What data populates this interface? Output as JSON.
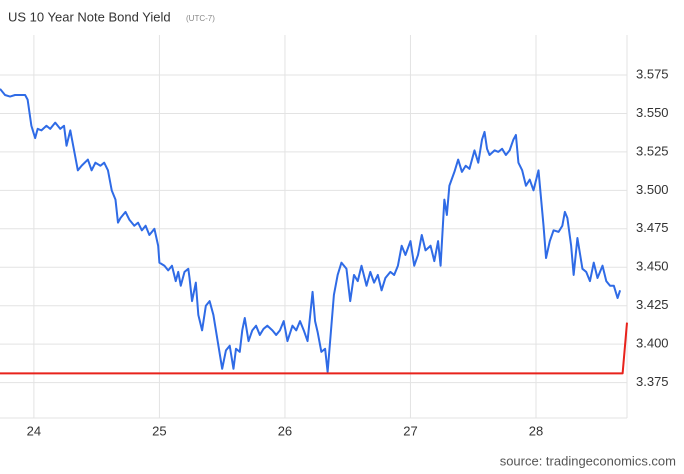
{
  "chart_data": {
    "type": "line",
    "title": "US 10 Year Note Bond Yield",
    "subtitle": "(UTC-7)",
    "source": "source: tradingeconomics.com",
    "xlim": [
      23.73,
      28.725
    ],
    "ylim": [
      3.352,
      3.601
    ],
    "xticks": [
      24,
      25,
      26,
      27,
      28
    ],
    "yticks": [
      3.375,
      {
        "value": 3.4,
        "label": "3.400"
      },
      3.425,
      {
        "value": 3.45,
        "label": "3.450"
      },
      3.475,
      {
        "value": 3.5,
        "label": "3.500"
      },
      3.525,
      {
        "value": 3.55,
        "label": "3.550"
      },
      3.575
    ],
    "grid": true,
    "series": [
      {
        "color": "#2f6be6",
        "x": [
          23.73,
          23.77,
          23.81,
          23.85,
          23.89,
          23.93,
          23.95,
          23.98,
          24.01,
          24.03,
          24.06,
          24.1,
          24.13,
          24.17,
          24.21,
          24.24,
          24.26,
          24.29,
          24.32,
          24.35,
          24.38,
          24.43,
          24.46,
          24.49,
          24.53,
          24.56,
          24.59,
          24.62,
          24.65,
          24.67,
          24.69,
          24.73,
          24.76,
          24.8,
          24.83,
          24.86,
          24.89,
          24.92,
          24.96,
          24.99,
          25.0,
          25.04,
          25.07,
          25.1,
          25.13,
          25.15,
          25.17,
          25.2,
          25.23,
          25.24,
          25.26,
          25.29,
          25.31,
          25.34,
          25.37,
          25.4,
          25.43,
          25.47,
          25.5,
          25.53,
          25.56,
          25.59,
          25.61,
          25.64,
          25.66,
          25.68,
          25.71,
          25.74,
          25.77,
          25.8,
          25.83,
          25.86,
          25.9,
          25.93,
          25.96,
          25.99,
          26.02,
          26.06,
          26.09,
          26.12,
          26.15,
          26.18,
          26.22,
          26.24,
          26.26,
          26.29,
          26.32,
          26.34,
          26.37,
          26.39,
          26.42,
          26.45,
          26.49,
          26.52,
          26.55,
          26.58,
          26.61,
          26.65,
          26.68,
          26.71,
          26.74,
          26.77,
          26.8,
          26.84,
          26.87,
          26.9,
          26.93,
          26.96,
          27.0,
          27.03,
          27.06,
          27.09,
          27.12,
          27.16,
          27.19,
          27.22,
          27.24,
          27.27,
          27.29,
          27.31,
          27.35,
          27.38,
          27.41,
          27.44,
          27.47,
          27.51,
          27.54,
          27.57,
          27.59,
          27.61,
          27.63,
          27.67,
          27.7,
          27.73,
          27.76,
          27.79,
          27.82,
          27.84,
          27.86,
          27.89,
          27.92,
          27.95,
          27.98,
          28.02,
          28.05,
          28.06,
          28.08,
          28.11,
          28.14,
          28.18,
          28.21,
          28.23,
          28.25,
          28.28,
          28.3,
          28.33,
          28.37,
          28.4,
          28.43,
          28.46,
          28.49,
          28.53,
          28.56,
          28.59,
          28.62,
          28.65,
          28.67
        ],
        "values": [
          3.566,
          3.562,
          3.561,
          3.562,
          3.562,
          3.562,
          3.559,
          3.542,
          3.534,
          3.54,
          3.539,
          3.542,
          3.54,
          3.544,
          3.54,
          3.542,
          3.529,
          3.539,
          3.526,
          3.513,
          3.516,
          3.52,
          3.513,
          3.518,
          3.516,
          3.518,
          3.513,
          3.5,
          3.494,
          3.479,
          3.482,
          3.486,
          3.481,
          3.477,
          3.479,
          3.474,
          3.477,
          3.471,
          3.475,
          3.464,
          3.453,
          3.451,
          3.448,
          3.451,
          3.441,
          3.447,
          3.438,
          3.447,
          3.449,
          3.443,
          3.428,
          3.44,
          3.419,
          3.409,
          3.425,
          3.428,
          3.419,
          3.399,
          3.384,
          3.396,
          3.399,
          3.384,
          3.397,
          3.395,
          3.409,
          3.417,
          3.402,
          3.409,
          3.412,
          3.406,
          3.41,
          3.412,
          3.409,
          3.406,
          3.409,
          3.415,
          3.402,
          3.412,
          3.409,
          3.415,
          3.409,
          3.402,
          3.434,
          3.415,
          3.408,
          3.395,
          3.397,
          3.382,
          3.412,
          3.432,
          3.445,
          3.453,
          3.449,
          3.428,
          3.445,
          3.441,
          3.451,
          3.438,
          3.447,
          3.44,
          3.445,
          3.435,
          3.443,
          3.447,
          3.445,
          3.451,
          3.464,
          3.458,
          3.467,
          3.451,
          3.458,
          3.471,
          3.461,
          3.464,
          3.454,
          3.467,
          3.451,
          3.494,
          3.484,
          3.503,
          3.512,
          3.52,
          3.512,
          3.516,
          3.514,
          3.526,
          3.518,
          3.533,
          3.538,
          3.527,
          3.523,
          3.526,
          3.525,
          3.527,
          3.523,
          3.526,
          3.533,
          3.536,
          3.518,
          3.513,
          3.503,
          3.507,
          3.5,
          3.513,
          3.486,
          3.477,
          3.456,
          3.467,
          3.474,
          3.473,
          3.477,
          3.486,
          3.482,
          3.464,
          3.445,
          3.469,
          3.449,
          3.447,
          3.441,
          3.453,
          3.443,
          3.451,
          3.441,
          3.438,
          3.438,
          3.43,
          3.435
        ]
      },
      {
        "color": "#e8221b",
        "x": [
          23.73,
          28.69,
          28.725
        ],
        "values": [
          3.381,
          3.381,
          3.414
        ]
      }
    ]
  }
}
